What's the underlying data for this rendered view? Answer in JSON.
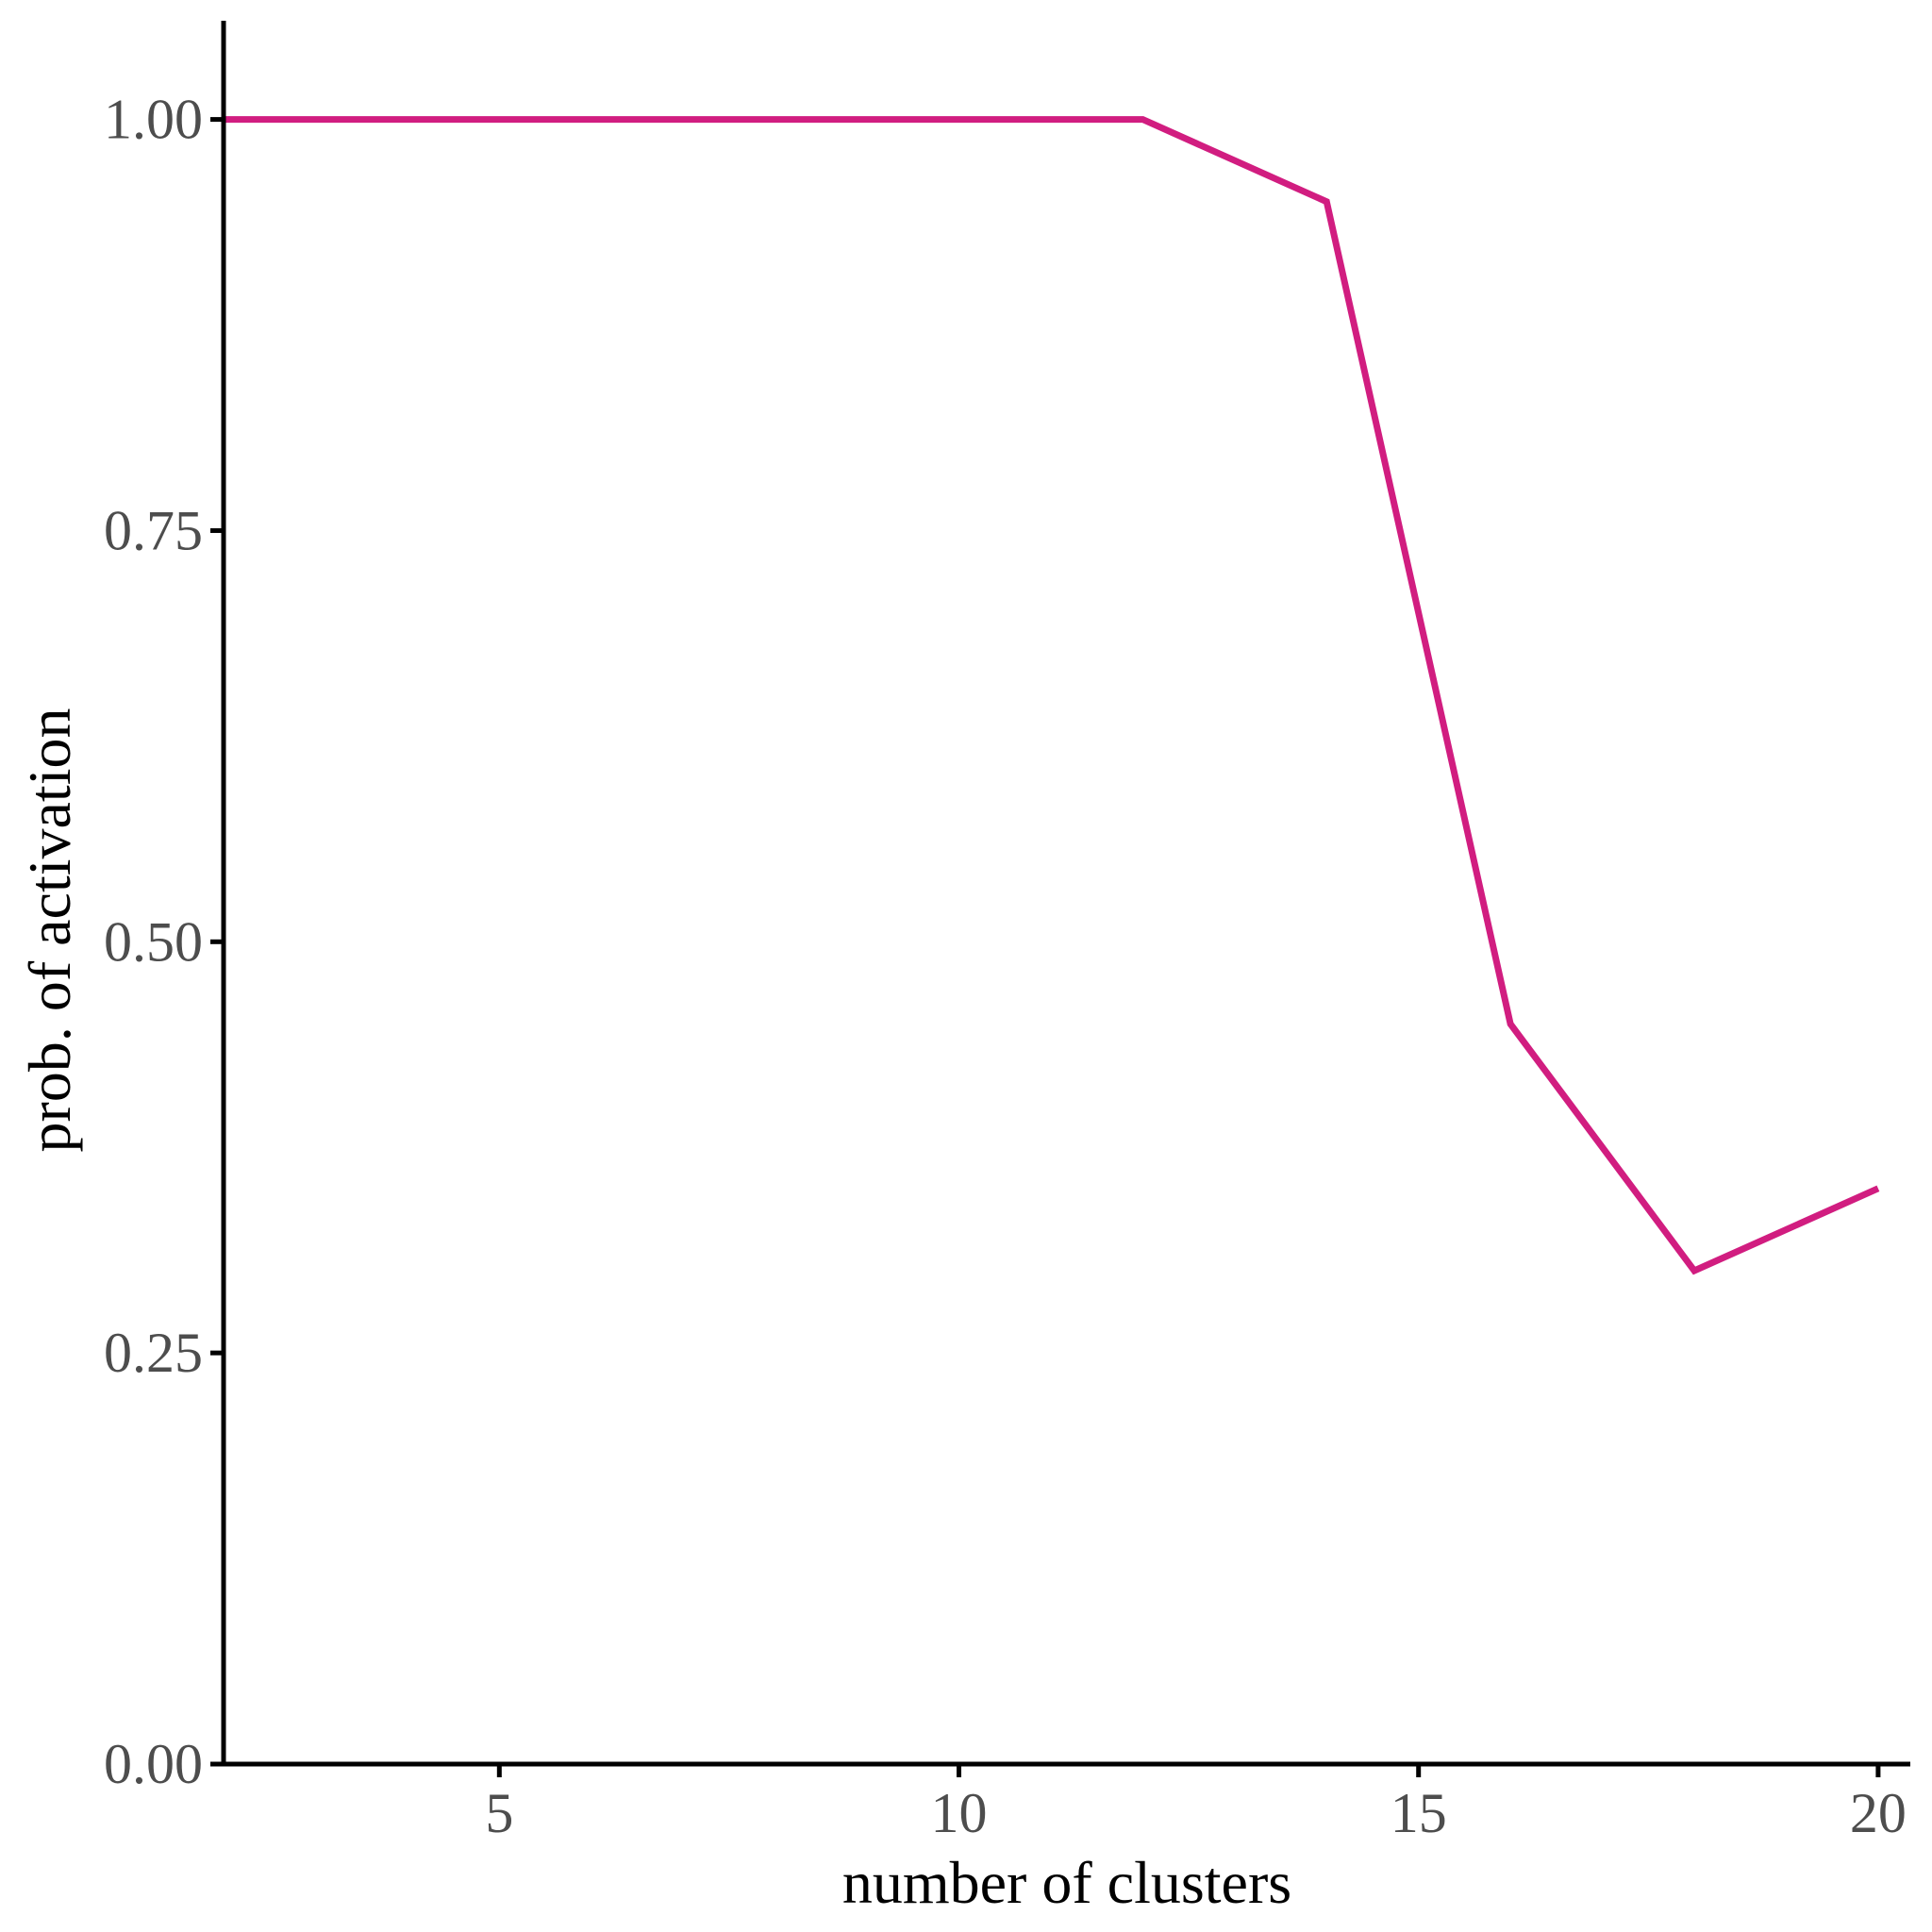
{
  "chart_data": {
    "type": "line",
    "title": "",
    "xlabel": "number of clusters",
    "ylabel": "prob. of activation",
    "xlim": [
      2,
      20.35
    ],
    "ylim": [
      0,
      1.06
    ],
    "x_ticks": [
      5,
      10,
      15,
      20
    ],
    "y_ticks": [
      0.0,
      0.25,
      0.5,
      0.75,
      1.0
    ],
    "x_tick_labels": [
      "5",
      "10",
      "15",
      "20"
    ],
    "y_tick_labels": [
      "0.00",
      "0.25",
      "0.50",
      "0.75",
      "1.00"
    ],
    "grid": false,
    "legend": "none",
    "series": [
      {
        "color": "#d11d80",
        "x": [
          2,
          4,
          6,
          8,
          10,
          12,
          14,
          16,
          18,
          20
        ],
        "y": [
          1.0,
          1.0,
          1.0,
          1.0,
          1.0,
          1.0,
          0.95,
          0.45,
          0.3,
          0.35
        ]
      }
    ]
  }
}
